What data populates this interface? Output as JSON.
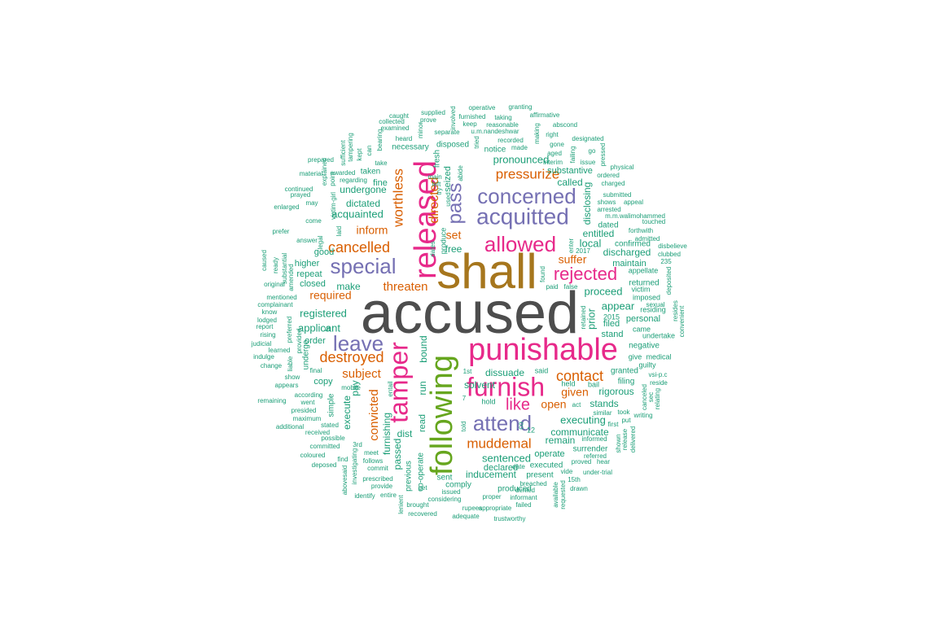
{
  "colors": {
    "grey": "#4d4d4d",
    "brown": "#a6761d",
    "magenta": "#e7298a",
    "purple": "#7570b3",
    "green": "#66a61e",
    "orange": "#d95f02",
    "teal": "#1b9e77"
  },
  "words": [
    {
      "text": "accused",
      "color": "grey"
    },
    {
      "text": "shall",
      "color": "brown"
    },
    {
      "text": "punishable",
      "color": "magenta"
    },
    {
      "text": "following",
      "color": "green"
    },
    {
      "text": "released",
      "color": "magenta"
    },
    {
      "text": "furnish",
      "color": "magenta"
    },
    {
      "text": "tamper",
      "color": "magenta"
    },
    {
      "text": "acquitted",
      "color": "purple"
    },
    {
      "text": "concerned",
      "color": "purple"
    },
    {
      "text": "allowed",
      "color": "magenta"
    },
    {
      "text": "attend",
      "color": "purple"
    },
    {
      "text": "special",
      "color": "purple"
    },
    {
      "text": "leave",
      "color": "purple"
    },
    {
      "text": "rejected",
      "color": "magenta"
    },
    {
      "text": "pass",
      "color": "purple"
    },
    {
      "text": "like",
      "color": "magenta"
    },
    {
      "text": "contact",
      "color": "orange"
    },
    {
      "text": "destroyed",
      "color": "orange"
    },
    {
      "text": "cancelled",
      "color": "orange"
    },
    {
      "text": "pressurize",
      "color": "orange"
    },
    {
      "text": "muddemal",
      "color": "orange"
    },
    {
      "text": "worthless",
      "color": "orange"
    },
    {
      "text": "directed",
      "color": "orange"
    },
    {
      "text": "threaten",
      "color": "orange"
    },
    {
      "text": "subject",
      "color": "orange"
    },
    {
      "text": "convicted",
      "color": "orange"
    },
    {
      "text": "open",
      "color": "orange"
    },
    {
      "text": "given",
      "color": "orange"
    },
    {
      "text": "suffer",
      "color": "orange"
    },
    {
      "text": "inform",
      "color": "orange"
    },
    {
      "text": "required",
      "color": "orange"
    },
    {
      "text": "set",
      "color": "orange"
    },
    {
      "text": "proceed",
      "color": "teal"
    },
    {
      "text": "executing",
      "color": "teal"
    },
    {
      "text": "sentenced",
      "color": "teal"
    },
    {
      "text": "pronounced",
      "color": "teal"
    },
    {
      "text": "registered",
      "color": "teal"
    },
    {
      "text": "applicant",
      "color": "teal"
    },
    {
      "text": "acquainted",
      "color": "teal"
    },
    {
      "text": "dictated",
      "color": "teal"
    },
    {
      "text": "undergone",
      "color": "teal"
    },
    {
      "text": "discharged",
      "color": "teal"
    },
    {
      "text": "entitled",
      "color": "teal"
    },
    {
      "text": "local",
      "color": "teal"
    },
    {
      "text": "disclosing",
      "color": "teal"
    },
    {
      "text": "called",
      "color": "teal"
    },
    {
      "text": "substantive",
      "color": "teal"
    },
    {
      "text": "appear",
      "color": "teal"
    },
    {
      "text": "prior",
      "color": "teal"
    },
    {
      "text": "rigorous",
      "color": "teal"
    },
    {
      "text": "stands",
      "color": "teal"
    },
    {
      "text": "communicate",
      "color": "teal"
    },
    {
      "text": "remain",
      "color": "teal"
    },
    {
      "text": "inducement",
      "color": "teal"
    },
    {
      "text": "dissuade",
      "color": "teal"
    },
    {
      "text": "solvent",
      "color": "teal"
    },
    {
      "text": "free",
      "color": "teal"
    },
    {
      "text": "make",
      "color": "teal"
    },
    {
      "text": "good",
      "color": "teal"
    },
    {
      "text": "repeat",
      "color": "teal"
    },
    {
      "text": "closed",
      "color": "teal"
    },
    {
      "text": "higher",
      "color": "teal"
    },
    {
      "text": "order",
      "color": "teal"
    },
    {
      "text": "copy",
      "color": "teal"
    },
    {
      "text": "pay",
      "color": "teal"
    },
    {
      "text": "execute",
      "color": "teal"
    },
    {
      "text": "furnishing",
      "color": "teal"
    },
    {
      "text": "passed",
      "color": "teal"
    },
    {
      "text": "dist",
      "color": "teal"
    },
    {
      "text": "run",
      "color": "teal"
    },
    {
      "text": "bound",
      "color": "teal"
    },
    {
      "text": "read",
      "color": "teal"
    },
    {
      "text": "fine",
      "color": "teal"
    },
    {
      "text": "taken",
      "color": "teal"
    },
    {
      "text": "maintain",
      "color": "teal"
    },
    {
      "text": "dated",
      "color": "teal"
    },
    {
      "text": "filed",
      "color": "teal"
    },
    {
      "text": "stand",
      "color": "teal"
    },
    {
      "text": "personal",
      "color": "teal"
    },
    {
      "text": "negative",
      "color": "teal"
    },
    {
      "text": "granted",
      "color": "teal"
    },
    {
      "text": "filing",
      "color": "teal"
    },
    {
      "text": "operate",
      "color": "teal"
    },
    {
      "text": "declared",
      "color": "teal"
    },
    {
      "text": "produced",
      "color": "teal"
    },
    {
      "text": "executed",
      "color": "teal"
    },
    {
      "text": "present",
      "color": "teal"
    },
    {
      "text": "comply",
      "color": "teal"
    },
    {
      "text": "sent",
      "color": "teal"
    },
    {
      "text": "notice",
      "color": "teal"
    },
    {
      "text": "disposed",
      "color": "teal"
    },
    {
      "text": "seized",
      "color": "teal"
    },
    {
      "text": "necessary",
      "color": "teal"
    },
    {
      "text": "co-operate",
      "color": "teal"
    },
    {
      "text": "previous",
      "color": "teal"
    },
    {
      "text": "surrender",
      "color": "teal"
    },
    {
      "text": "returned",
      "color": "teal"
    },
    {
      "text": "confirmed",
      "color": "teal"
    },
    {
      "text": "fresh",
      "color": "teal"
    },
    {
      "text": "said",
      "color": "teal"
    },
    {
      "text": "bail",
      "color": "teal"
    },
    {
      "text": "held",
      "color": "teal"
    },
    {
      "text": "simple",
      "color": "teal"
    },
    {
      "text": "hold",
      "color": "teal"
    },
    {
      "text": "produce",
      "color": "teal"
    },
    {
      "text": "appellate",
      "color": "teal"
    },
    {
      "text": "imposed",
      "color": "teal"
    },
    {
      "text": "victim",
      "color": "teal"
    },
    {
      "text": "residing",
      "color": "teal"
    },
    {
      "text": "came",
      "color": "teal"
    },
    {
      "text": "undertake",
      "color": "teal"
    },
    {
      "text": "medical",
      "color": "teal"
    },
    {
      "text": "give",
      "color": "teal"
    },
    {
      "text": "guilty",
      "color": "teal"
    },
    {
      "text": "caught",
      "color": "teal"
    },
    {
      "text": "supplied",
      "color": "teal"
    },
    {
      "text": "prove",
      "color": "teal"
    },
    {
      "text": "operative",
      "color": "teal"
    },
    {
      "text": "granting",
      "color": "teal"
    },
    {
      "text": "affirmative",
      "color": "teal"
    },
    {
      "text": "abscond",
      "color": "teal"
    },
    {
      "text": "furnished",
      "color": "teal"
    },
    {
      "text": "taking",
      "color": "teal"
    },
    {
      "text": "separate",
      "color": "teal"
    },
    {
      "text": "u.m.nandeshwar",
      "color": "teal"
    },
    {
      "text": "recorded",
      "color": "teal"
    },
    {
      "text": "keep",
      "color": "teal"
    },
    {
      "text": "reasonable",
      "color": "teal"
    },
    {
      "text": "made",
      "color": "teal"
    },
    {
      "text": "right",
      "color": "teal"
    },
    {
      "text": "gone",
      "color": "teal"
    },
    {
      "text": "aged",
      "color": "teal"
    },
    {
      "text": "interim",
      "color": "teal"
    },
    {
      "text": "designated",
      "color": "teal"
    },
    {
      "text": "issue",
      "color": "teal"
    },
    {
      "text": "physical",
      "color": "teal"
    },
    {
      "text": "ordered",
      "color": "teal"
    },
    {
      "text": "charged",
      "color": "teal"
    },
    {
      "text": "submitted",
      "color": "teal"
    },
    {
      "text": "shows",
      "color": "teal"
    },
    {
      "text": "appeal",
      "color": "teal"
    },
    {
      "text": "arrested",
      "color": "teal"
    },
    {
      "text": "m.m.walimohammed",
      "color": "teal"
    },
    {
      "text": "touched",
      "color": "teal"
    },
    {
      "text": "forthwith",
      "color": "teal"
    },
    {
      "text": "admitted",
      "color": "teal"
    },
    {
      "text": "disbelieve",
      "color": "teal"
    },
    {
      "text": "clubbed",
      "color": "teal"
    },
    {
      "text": "235",
      "color": "teal"
    },
    {
      "text": "deposited",
      "color": "teal"
    },
    {
      "text": "resides",
      "color": "teal"
    },
    {
      "text": "convenient",
      "color": "teal"
    },
    {
      "text": "sexual",
      "color": "teal"
    },
    {
      "text": "vsi-p.c",
      "color": "teal"
    },
    {
      "text": "reside",
      "color": "teal"
    },
    {
      "text": "2015",
      "color": "teal"
    },
    {
      "text": "2017",
      "color": "teal"
    },
    {
      "text": "paid",
      "color": "teal"
    },
    {
      "text": "false",
      "color": "teal"
    },
    {
      "text": "found",
      "color": "teal"
    },
    {
      "text": "enter",
      "color": "teal"
    },
    {
      "text": "retained",
      "color": "teal"
    },
    {
      "text": "dates",
      "color": "teal"
    },
    {
      "text": "used",
      "color": "teal"
    },
    {
      "text": "abide",
      "color": "teal"
    },
    {
      "text": "main",
      "color": "teal"
    },
    {
      "text": "left",
      "color": "teal"
    },
    {
      "text": "try",
      "color": "teal"
    },
    {
      "text": "1st",
      "color": "teal"
    },
    {
      "text": "canceled",
      "color": "teal"
    },
    {
      "text": "sec",
      "color": "teal"
    },
    {
      "text": "relating",
      "color": "teal"
    },
    {
      "text": "writing",
      "color": "teal"
    },
    {
      "text": "took",
      "color": "teal"
    },
    {
      "text": "put",
      "color": "teal"
    },
    {
      "text": "similar",
      "color": "teal"
    },
    {
      "text": "act",
      "color": "teal"
    },
    {
      "text": "first",
      "color": "teal"
    },
    {
      "text": "informed",
      "color": "teal"
    },
    {
      "text": "referred",
      "color": "teal"
    },
    {
      "text": "hear",
      "color": "teal"
    },
    {
      "text": "proved",
      "color": "teal"
    },
    {
      "text": "vide",
      "color": "teal"
    },
    {
      "text": "under-trial",
      "color": "teal"
    },
    {
      "text": "15th",
      "color": "teal"
    },
    {
      "text": "drawn",
      "color": "teal"
    },
    {
      "text": "denied",
      "color": "teal"
    },
    {
      "text": "informant",
      "color": "teal"
    },
    {
      "text": "failed",
      "color": "teal"
    },
    {
      "text": "breached",
      "color": "teal"
    },
    {
      "text": "date",
      "color": "teal"
    },
    {
      "text": "proper",
      "color": "teal"
    },
    {
      "text": "issued",
      "color": "teal"
    },
    {
      "text": "considering",
      "color": "teal"
    },
    {
      "text": "rupees",
      "color": "teal"
    },
    {
      "text": "appropriate",
      "color": "teal"
    },
    {
      "text": "adequate",
      "color": "teal"
    },
    {
      "text": "trustworthy",
      "color": "teal"
    },
    {
      "text": "brought",
      "color": "teal"
    },
    {
      "text": "recovered",
      "color": "teal"
    },
    {
      "text": "get",
      "color": "teal"
    },
    {
      "text": "entire",
      "color": "teal"
    },
    {
      "text": "lenient",
      "color": "teal"
    },
    {
      "text": "identify",
      "color": "teal"
    },
    {
      "text": "provide",
      "color": "teal"
    },
    {
      "text": "prescribed",
      "color": "teal"
    },
    {
      "text": "commit",
      "color": "teal"
    },
    {
      "text": "follows",
      "color": "teal"
    },
    {
      "text": "meet",
      "color": "teal"
    },
    {
      "text": "find",
      "color": "teal"
    },
    {
      "text": "deposed",
      "color": "teal"
    },
    {
      "text": "coloured",
      "color": "teal"
    },
    {
      "text": "committed",
      "color": "teal"
    },
    {
      "text": "possible",
      "color": "teal"
    },
    {
      "text": "received",
      "color": "teal"
    },
    {
      "text": "stated",
      "color": "teal"
    },
    {
      "text": "additional",
      "color": "teal"
    },
    {
      "text": "maximum",
      "color": "teal"
    },
    {
      "text": "presided",
      "color": "teal"
    },
    {
      "text": "went",
      "color": "teal"
    },
    {
      "text": "remaining",
      "color": "teal"
    },
    {
      "text": "according",
      "color": "teal"
    },
    {
      "text": "final",
      "color": "teal"
    },
    {
      "text": "show",
      "color": "teal"
    },
    {
      "text": "mobile",
      "color": "teal"
    },
    {
      "text": "entail",
      "color": "teal"
    },
    {
      "text": "3rd",
      "color": "teal"
    },
    {
      "text": "investigating",
      "color": "teal"
    },
    {
      "text": "abovesaid",
      "color": "teal"
    },
    {
      "text": "change",
      "color": "teal"
    },
    {
      "text": "indulge",
      "color": "teal"
    },
    {
      "text": "judicial",
      "color": "teal"
    },
    {
      "text": "learned",
      "color": "teal"
    },
    {
      "text": "rising",
      "color": "teal"
    },
    {
      "text": "report",
      "color": "teal"
    },
    {
      "text": "lodged",
      "color": "teal"
    },
    {
      "text": "know",
      "color": "teal"
    },
    {
      "text": "complainant",
      "color": "teal"
    },
    {
      "text": "mentioned",
      "color": "teal"
    },
    {
      "text": "appears",
      "color": "teal"
    },
    {
      "text": "liable",
      "color": "teal"
    },
    {
      "text": "undergo",
      "color": "teal"
    },
    {
      "text": "provided",
      "color": "teal"
    },
    {
      "text": "preferred",
      "color": "teal"
    },
    {
      "text": "dt",
      "color": "teal"
    },
    {
      "text": "original",
      "color": "teal"
    },
    {
      "text": "caused",
      "color": "teal"
    },
    {
      "text": "ready",
      "color": "teal"
    },
    {
      "text": "substantial",
      "color": "teal"
    },
    {
      "text": "amended",
      "color": "teal"
    },
    {
      "text": "prefer",
      "color": "teal"
    },
    {
      "text": "answer",
      "color": "teal"
    },
    {
      "text": "legal",
      "color": "teal"
    },
    {
      "text": "come",
      "color": "teal"
    },
    {
      "text": "laid",
      "color": "teal"
    },
    {
      "text": "enlarged",
      "color": "teal"
    },
    {
      "text": "may",
      "color": "teal"
    },
    {
      "text": "prayed",
      "color": "teal"
    },
    {
      "text": "continued",
      "color": "teal"
    },
    {
      "text": "victim-girl",
      "color": "teal"
    },
    {
      "text": "material",
      "color": "teal"
    },
    {
      "text": "explained",
      "color": "teal"
    },
    {
      "text": "point",
      "color": "teal"
    },
    {
      "text": "awarded",
      "color": "teal"
    },
    {
      "text": "regarding",
      "color": "teal"
    },
    {
      "text": "prepared",
      "color": "teal"
    },
    {
      "text": "sufficient",
      "color": "teal"
    },
    {
      "text": "tampering",
      "color": "teal"
    },
    {
      "text": "kept",
      "color": "teal"
    },
    {
      "text": "can",
      "color": "teal"
    },
    {
      "text": "take",
      "color": "teal"
    },
    {
      "text": "bearing",
      "color": "teal"
    },
    {
      "text": "examined",
      "color": "teal"
    },
    {
      "text": "collected",
      "color": "teal"
    },
    {
      "text": "heard",
      "color": "teal"
    },
    {
      "text": "minor",
      "color": "teal"
    },
    {
      "text": "involved",
      "color": "teal"
    },
    {
      "text": "tried",
      "color": "teal"
    },
    {
      "text": "making",
      "color": "teal"
    },
    {
      "text": "failing",
      "color": "teal"
    },
    {
      "text": "pressed",
      "color": "teal"
    },
    {
      "text": "go",
      "color": "teal"
    },
    {
      "text": "12",
      "color": "teal"
    },
    {
      "text": "told",
      "color": "teal"
    },
    {
      "text": "co",
      "color": "teal"
    },
    {
      "text": "7",
      "color": "teal"
    },
    {
      "text": "available",
      "color": "teal"
    },
    {
      "text": "requested",
      "color": "teal"
    },
    {
      "text": "delivered",
      "color": "teal"
    },
    {
      "text": "shown",
      "color": "teal"
    },
    {
      "text": "release",
      "color": "teal"
    }
  ]
}
